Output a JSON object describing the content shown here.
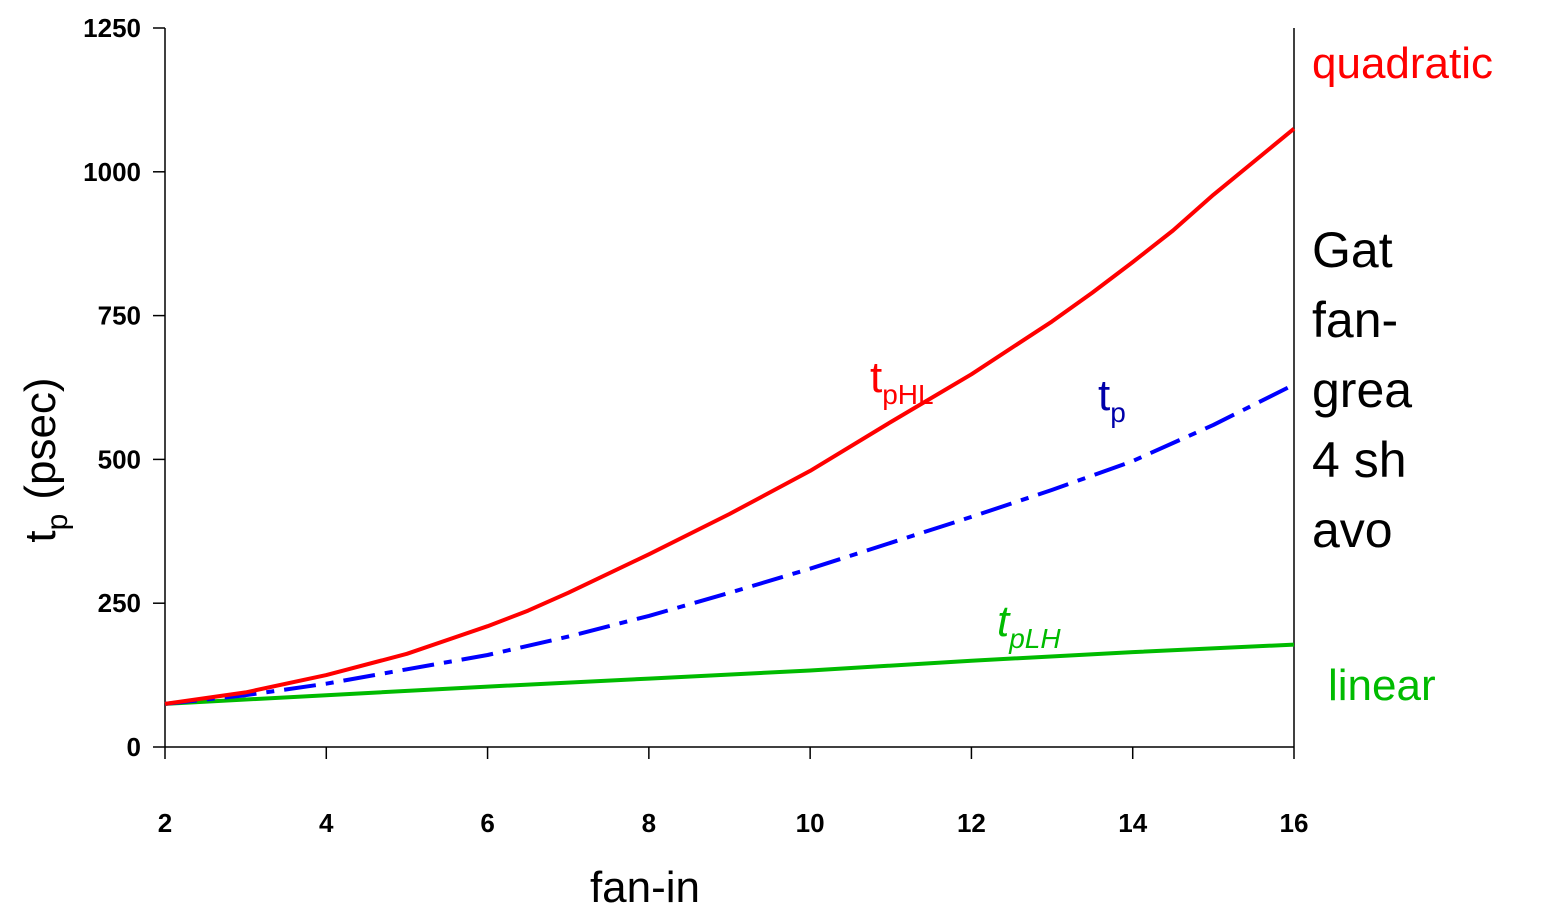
{
  "chart_data": {
    "type": "line",
    "xlabel": "fan-in",
    "ylabel": {
      "main": "t",
      "sub": "p",
      "unit": "(psec)"
    },
    "xlim": [
      2,
      16
    ],
    "ylim": [
      0,
      1250
    ],
    "x_ticks": [
      2,
      4,
      6,
      8,
      10,
      12,
      14,
      16
    ],
    "y_ticks": [
      0,
      250,
      500,
      750,
      1000,
      1250
    ],
    "grid": false,
    "series": [
      {
        "label_main": "t",
        "label_sub": "pHL",
        "label_italic": false,
        "color": "#ff0000",
        "style": "solid",
        "x": [
          2,
          3,
          4,
          5,
          6,
          6.5,
          7,
          8,
          9,
          10,
          11,
          12,
          13,
          13.5,
          14,
          14.5,
          15,
          16
        ],
        "y": [
          75,
          95,
          125,
          162,
          210,
          237,
          268,
          335,
          405,
          480,
          565,
          648,
          740,
          790,
          843,
          898,
          960,
          1075
        ]
      },
      {
        "label_main": "t",
        "label_sub": "p",
        "label_italic": false,
        "color": "#0000ff",
        "style": "dashdot",
        "x": [
          2,
          3,
          4,
          5,
          6,
          7,
          8,
          9,
          10,
          11,
          12,
          13,
          14,
          15,
          16
        ],
        "y": [
          75,
          90,
          110,
          135,
          160,
          192,
          228,
          268,
          310,
          355,
          400,
          447,
          497,
          560,
          630
        ]
      },
      {
        "label_main": "t",
        "label_sub": "pLH",
        "label_italic": true,
        "color": "#00bb00",
        "style": "solid",
        "x": [
          2,
          4,
          6,
          8,
          10,
          12,
          14,
          16
        ],
        "y": [
          75,
          90,
          105,
          119,
          133,
          150,
          165,
          178
        ]
      }
    ],
    "annotations": {
      "quadratic": {
        "text": "quadratic",
        "color": "#ff0000"
      },
      "linear": {
        "text": "linear",
        "color": "#00bb00"
      }
    }
  },
  "side_text": [
    "Gat",
    "fan-",
    "grea",
    "4 sh",
    "avo"
  ]
}
